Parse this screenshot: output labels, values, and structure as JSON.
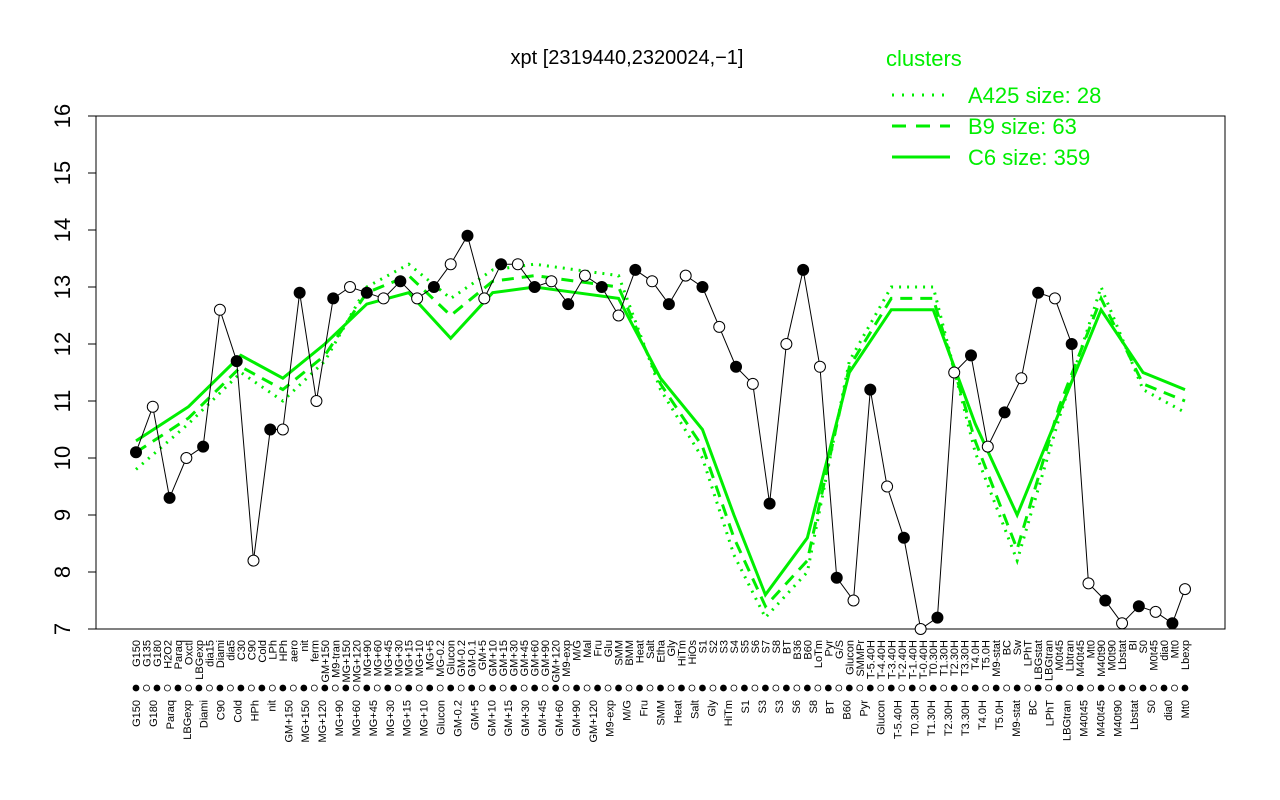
{
  "chart_data": {
    "type": "line",
    "title": "xpt [2319440,2320024,−1]",
    "xlabel": "",
    "ylabel": "",
    "ylim": [
      7,
      16
    ],
    "yticks": [
      7,
      8,
      9,
      10,
      11,
      12,
      13,
      14,
      15,
      16
    ],
    "grid": false,
    "legend": {
      "title": "clusters",
      "placement": "top-right",
      "color": "#00ee00",
      "entries": [
        {
          "label": "A425 size: 28",
          "style": "dotted"
        },
        {
          "label": "B9 size: 63",
          "style": "dashed"
        },
        {
          "label": "C6 size: 359",
          "style": "solid"
        }
      ]
    },
    "x_tick_labels": [
      "G150",
      "G135",
      "G180",
      "H2O2",
      "Paraq",
      "Oxctl",
      "LBGexp",
      "dia15",
      "Diami",
      "dia5",
      "C30",
      "C90",
      "Cold",
      "LPh",
      "HPh",
      "aero",
      "nit",
      "ferm",
      "GM+150",
      "M9-tran",
      "MG+150",
      "MG+120",
      "MG+90",
      "MG+60",
      "MG+45",
      "MG+30",
      "MG+15",
      "MG+10",
      "MG+5",
      "MG-0.2",
      "Glucon",
      "GM-0.2",
      "GM-0.1",
      "GM+5",
      "GM+10",
      "GM+15",
      "GM+30",
      "GM+45",
      "GM+60",
      "GM+90",
      "GM+120",
      "M9-exp",
      "M/G",
      "Mal",
      "Fru",
      "Glu",
      "SMM",
      "BMM",
      "Heat",
      "Salt",
      "Etha",
      "Gly",
      "HiTm",
      "HiOs",
      "S1",
      "S2",
      "S3",
      "S4",
      "S5",
      "S6",
      "S7",
      "S8",
      "BT",
      "B36",
      "B60",
      "LoTm",
      "Pyr",
      "G/S",
      "Glucon",
      "SMMPr",
      "T-5.40H",
      "T-4.40H",
      "T-3.40H",
      "T-2.40H",
      "T-1.40H",
      "T-0.40H",
      "T0.30H",
      "T1.30H",
      "T2.30H",
      "T3.30H",
      "T4.0H",
      "T5.0H",
      "M9-stat",
      "BC",
      "Sw",
      "LPhT",
      "LBGstat",
      "LBGtran",
      "M0t45",
      "Lbtran",
      "M40t45",
      "Mt0",
      "M40t90",
      "M0t90",
      "Lbstat",
      "BI",
      "S0",
      "M0t45",
      "dia0",
      "Mt0",
      "Lbexp"
    ],
    "x_tick_labels_note_lower_row": [
      "G150",
      "G180",
      "Paraq",
      "LBGexp",
      "Diami",
      "C90",
      "Cold",
      "HPh",
      "nit",
      "GM+150",
      "MG+150",
      "MG+120",
      "MG+90",
      "MG+60",
      "MG+45",
      "MG+30",
      "MG+15",
      "MG+10",
      "Glucon",
      "GM-0.2",
      "GM+5",
      "GM+10",
      "GM+15",
      "GM+30",
      "GM+45",
      "GM+60",
      "GM+90",
      "GM+120",
      "M9-exp",
      "M/G",
      "Fru",
      "SMM",
      "Heat",
      "Salt",
      "Gly",
      "HiTm",
      "S1",
      "S3",
      "S3",
      "S6",
      "S8",
      "BT",
      "B60",
      "Pyr",
      "Glucon",
      "T-5.40H",
      "T0.30H",
      "T1.30H",
      "T2.30H",
      "T3.30H",
      "T4.0H",
      "T5.0H",
      "M9-stat",
      "BC",
      "LPhT",
      "LBGtran",
      "M40t45",
      "M40t45",
      "M40t90",
      "Lbstat",
      "S0",
      "dia0",
      "Mt0"
    ],
    "series": [
      {
        "name": "C6 size: 359",
        "style": "solid",
        "x": [
          0.0,
          0.05,
          0.1,
          0.14,
          0.18,
          0.22,
          0.26,
          0.3,
          0.34,
          0.38,
          0.42,
          0.46,
          0.5,
          0.54,
          0.57,
          0.6,
          0.64,
          0.68,
          0.72,
          0.76,
          0.8,
          0.84,
          0.88,
          0.92,
          0.96,
          1.0
        ],
        "values": [
          10.3,
          10.9,
          11.8,
          11.4,
          12.0,
          12.7,
          12.9,
          12.1,
          12.9,
          13.0,
          12.9,
          12.8,
          11.4,
          10.5,
          9.0,
          7.6,
          8.6,
          11.5,
          12.6,
          12.6,
          10.6,
          9.0,
          10.8,
          12.6,
          11.5,
          11.2
        ]
      },
      {
        "name": "B9 size: 63",
        "style": "dashed",
        "x": [
          0.0,
          0.05,
          0.1,
          0.14,
          0.18,
          0.22,
          0.26,
          0.3,
          0.34,
          0.38,
          0.42,
          0.46,
          0.5,
          0.54,
          0.57,
          0.6,
          0.64,
          0.68,
          0.72,
          0.76,
          0.8,
          0.84,
          0.88,
          0.92,
          0.96,
          1.0
        ],
        "values": [
          10.1,
          10.7,
          11.6,
          11.2,
          11.8,
          12.9,
          13.2,
          12.5,
          13.1,
          13.2,
          13.1,
          13.0,
          11.3,
          10.2,
          8.6,
          7.4,
          8.2,
          11.6,
          12.8,
          12.8,
          10.3,
          8.4,
          10.9,
          12.8,
          11.3,
          11.0
        ]
      },
      {
        "name": "A425 size: 28",
        "style": "dotted",
        "x": [
          0.0,
          0.05,
          0.1,
          0.14,
          0.18,
          0.22,
          0.26,
          0.3,
          0.34,
          0.38,
          0.42,
          0.46,
          0.5,
          0.54,
          0.57,
          0.6,
          0.64,
          0.68,
          0.72,
          0.76,
          0.8,
          0.84,
          0.88,
          0.92,
          0.96,
          1.0
        ],
        "values": [
          9.8,
          10.6,
          11.5,
          11.0,
          11.7,
          13.0,
          13.4,
          12.8,
          13.3,
          13.4,
          13.3,
          13.2,
          11.2,
          10.0,
          8.3,
          7.2,
          8.0,
          11.7,
          13.0,
          13.0,
          10.1,
          8.2,
          10.7,
          13.0,
          11.2,
          10.8
        ]
      },
      {
        "name": "xpt [2319440,2320024,−1]",
        "style": "black-line-with-points",
        "x": [
          0.0,
          0.016,
          0.032,
          0.048,
          0.064,
          0.08,
          0.096,
          0.112,
          0.128,
          0.14,
          0.156,
          0.172,
          0.188,
          0.204,
          0.22,
          0.236,
          0.252,
          0.268,
          0.284,
          0.3,
          0.316,
          0.332,
          0.348,
          0.364,
          0.38,
          0.396,
          0.412,
          0.428,
          0.444,
          0.46,
          0.476,
          0.492,
          0.508,
          0.524,
          0.54,
          0.556,
          0.572,
          0.588,
          0.604,
          0.62,
          0.636,
          0.652,
          0.668,
          0.684,
          0.7,
          0.716,
          0.732,
          0.748,
          0.764,
          0.78,
          0.796,
          0.812,
          0.828,
          0.844,
          0.86,
          0.876,
          0.892,
          0.908,
          0.924,
          0.94,
          0.956,
          0.972,
          0.988,
          1.0
        ],
        "values": [
          10.1,
          10.9,
          9.3,
          10.0,
          10.2,
          12.6,
          11.7,
          8.2,
          10.5,
          10.5,
          12.9,
          11.0,
          12.8,
          13.0,
          12.9,
          12.8,
          13.1,
          12.8,
          13.0,
          13.4,
          13.9,
          12.8,
          13.4,
          13.4,
          13.0,
          13.1,
          12.7,
          13.2,
          13.0,
          12.5,
          13.3,
          13.1,
          12.7,
          13.2,
          13.0,
          12.3,
          11.6,
          11.3,
          9.2,
          12.0,
          13.3,
          11.6,
          7.9,
          7.5,
          11.2,
          9.5,
          8.6,
          7.0,
          7.2,
          11.5,
          11.8,
          10.2,
          10.8,
          11.4,
          12.9,
          12.8,
          12.0,
          7.8,
          7.5,
          7.1,
          7.4,
          7.3,
          7.1,
          7.7
        ],
        "labeled_point_indices_note": "points drawn as circles; filled and hollow alternate per condition"
      }
    ]
  }
}
